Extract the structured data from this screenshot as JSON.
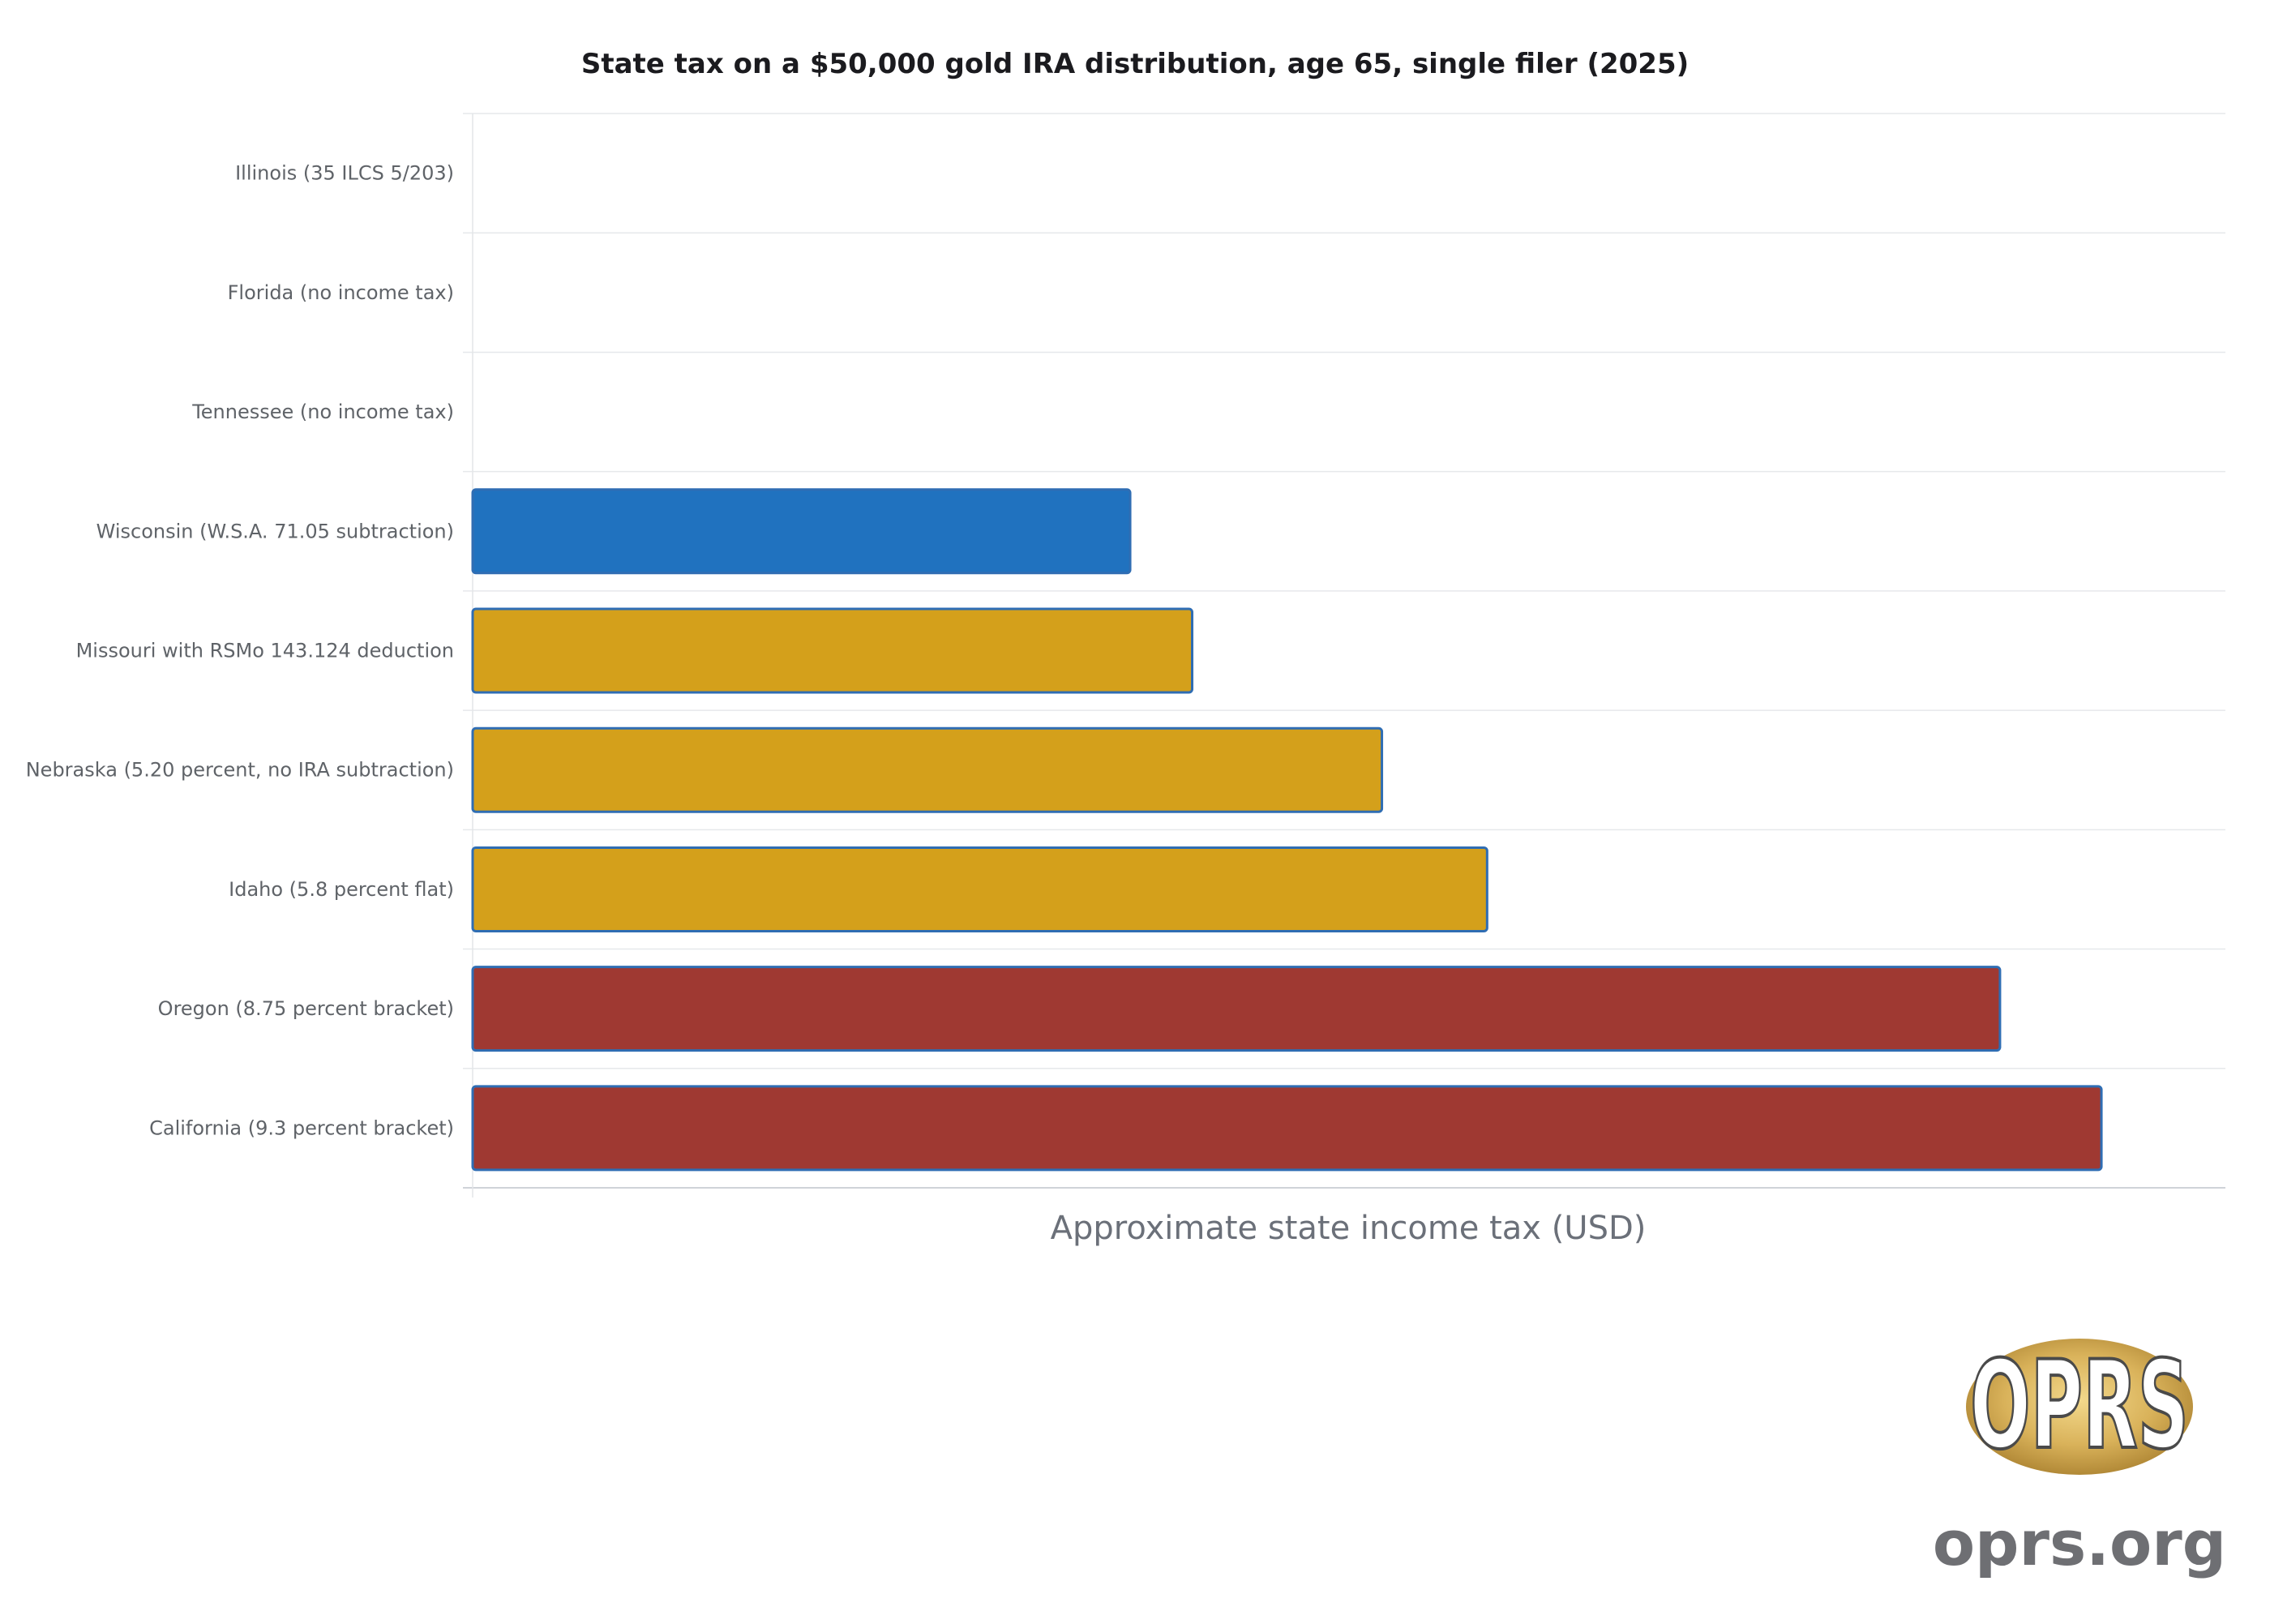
{
  "chart_data": {
    "type": "bar",
    "orientation": "horizontal",
    "title": "State tax on a $50,000 gold IRA distribution, age 65, single filer (2025)",
    "xlabel": "Approximate state income tax (USD)",
    "ylabel": "",
    "categories": [
      "Illinois (35 ILCS 5/203)",
      "Florida (no income tax)",
      "Tennessee (no income tax)",
      "Wisconsin (W.S.A. 71.05 subtraction)",
      "Missouri with RSMo 143.124 deduction",
      "Nebraska (5.20 percent, no IRA subtraction)",
      "Idaho (5.8 percent flat)",
      "Oregon (8.75 percent bracket)",
      "California (9.3 percent bracket)"
    ],
    "values": [
      0,
      0,
      0,
      1750,
      1915,
      2420,
      2700,
      4065,
      4335
    ],
    "bar_colors": [
      "#2072bf",
      "#2072bf",
      "#2072bf",
      "#2072bf",
      "#d4a01b",
      "#d4a01b",
      "#d4a01b",
      "#9f3932",
      "#9f3932"
    ],
    "bar_outline_color": "#2f6db3",
    "xlim": [
      0,
      4665
    ],
    "x_tick_labels": "hidden",
    "grid": true,
    "legend": "none"
  },
  "logo": {
    "emblem_text": "OPRS",
    "site_text": "oprs.org"
  }
}
